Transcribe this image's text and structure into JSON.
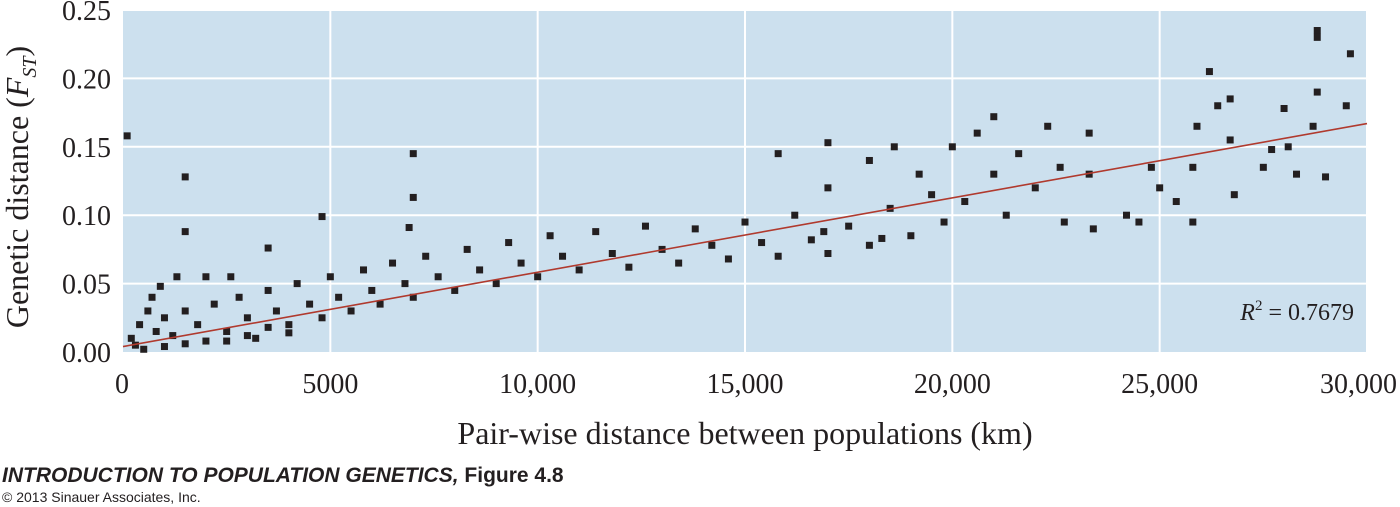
{
  "chart_data": {
    "type": "scatter",
    "title": "",
    "xlabel": "Pair-wise distance between populations (km)",
    "ylabel_main": "Genetic distance (",
    "ylabel_symbol": "F",
    "ylabel_subscript": "ST",
    "ylabel_close": ")",
    "xlim": [
      0,
      30000
    ],
    "ylim": [
      0,
      0.25
    ],
    "x_ticks": [
      0,
      5000,
      10000,
      15000,
      20000,
      25000,
      30000
    ],
    "x_tick_labels": [
      "0",
      "5000",
      "10,000",
      "15,000",
      "20,000",
      "25,000",
      "30,000"
    ],
    "y_ticks": [
      0,
      0.05,
      0.1,
      0.15,
      0.2,
      0.25
    ],
    "y_tick_labels": [
      "0.00",
      "0.05",
      "0.10",
      "0.15",
      "0.20",
      "0.25"
    ],
    "grid": true,
    "background_color": "#cce0ee",
    "grid_color": "#ffffff",
    "point_color": "#231f20",
    "regression": {
      "x": [
        0,
        30000
      ],
      "y": [
        0.004,
        0.167
      ],
      "color": "#b03a2e",
      "label_symbol": "R",
      "label_superscript": "2",
      "label_value": " = 0.7679"
    },
    "points": [
      [
        100,
        0.158
      ],
      [
        1500,
        0.128
      ],
      [
        1500,
        0.088
      ],
      [
        1300,
        0.055
      ],
      [
        2000,
        0.055
      ],
      [
        4800,
        0.099
      ],
      [
        7000,
        0.145
      ],
      [
        7000,
        0.113
      ],
      [
        6900,
        0.091
      ],
      [
        3500,
        0.076
      ],
      [
        200,
        0.01
      ],
      [
        400,
        0.02
      ],
      [
        600,
        0.03
      ],
      [
        300,
        0.005
      ],
      [
        800,
        0.015
      ],
      [
        1000,
        0.025
      ],
      [
        1200,
        0.012
      ],
      [
        1500,
        0.03
      ],
      [
        1800,
        0.02
      ],
      [
        2000,
        0.008
      ],
      [
        2200,
        0.035
      ],
      [
        2500,
        0.015
      ],
      [
        2800,
        0.04
      ],
      [
        3000,
        0.025
      ],
      [
        3200,
        0.01
      ],
      [
        3500,
        0.045
      ],
      [
        3700,
        0.03
      ],
      [
        4000,
        0.02
      ],
      [
        4200,
        0.05
      ],
      [
        4500,
        0.035
      ],
      [
        4800,
        0.025
      ],
      [
        5000,
        0.055
      ],
      [
        5200,
        0.04
      ],
      [
        5500,
        0.03
      ],
      [
        5800,
        0.06
      ],
      [
        6000,
        0.045
      ],
      [
        6200,
        0.035
      ],
      [
        6500,
        0.065
      ],
      [
        6800,
        0.05
      ],
      [
        7000,
        0.04
      ],
      [
        7300,
        0.07
      ],
      [
        7600,
        0.055
      ],
      [
        8000,
        0.045
      ],
      [
        8300,
        0.075
      ],
      [
        8600,
        0.06
      ],
      [
        9000,
        0.05
      ],
      [
        9300,
        0.08
      ],
      [
        9600,
        0.065
      ],
      [
        10000,
        0.055
      ],
      [
        10300,
        0.085
      ],
      [
        10600,
        0.07
      ],
      [
        11000,
        0.06
      ],
      [
        11400,
        0.088
      ],
      [
        11800,
        0.072
      ],
      [
        12200,
        0.062
      ],
      [
        12600,
        0.092
      ],
      [
        13000,
        0.075
      ],
      [
        13400,
        0.065
      ],
      [
        13800,
        0.09
      ],
      [
        14200,
        0.078
      ],
      [
        14600,
        0.068
      ],
      [
        15000,
        0.095
      ],
      [
        15400,
        0.08
      ],
      [
        15800,
        0.07
      ],
      [
        15800,
        0.145
      ],
      [
        16200,
        0.1
      ],
      [
        16600,
        0.082
      ],
      [
        17000,
        0.072
      ],
      [
        17000,
        0.153
      ],
      [
        17000,
        0.12
      ],
      [
        17500,
        0.092
      ],
      [
        18000,
        0.078
      ],
      [
        18000,
        0.14
      ],
      [
        18500,
        0.105
      ],
      [
        18600,
        0.15
      ],
      [
        19000,
        0.085
      ],
      [
        19200,
        0.13
      ],
      [
        19500,
        0.115
      ],
      [
        19800,
        0.095
      ],
      [
        20000,
        0.15
      ],
      [
        20300,
        0.11
      ],
      [
        20600,
        0.16
      ],
      [
        21000,
        0.13
      ],
      [
        21000,
        0.172
      ],
      [
        21300,
        0.1
      ],
      [
        21600,
        0.145
      ],
      [
        22000,
        0.12
      ],
      [
        22300,
        0.165
      ],
      [
        22600,
        0.135
      ],
      [
        22700,
        0.095
      ],
      [
        23300,
        0.16
      ],
      [
        23300,
        0.13
      ],
      [
        23400,
        0.09
      ],
      [
        24200,
        0.1
      ],
      [
        24500,
        0.095
      ],
      [
        24800,
        0.135
      ],
      [
        25000,
        0.12
      ],
      [
        25400,
        0.11
      ],
      [
        25800,
        0.095
      ],
      [
        25800,
        0.135
      ],
      [
        26200,
        0.205
      ],
      [
        26400,
        0.18
      ],
      [
        26700,
        0.185
      ],
      [
        26700,
        0.155
      ],
      [
        26800,
        0.115
      ],
      [
        27500,
        0.135
      ],
      [
        28100,
        0.15
      ],
      [
        28300,
        0.13
      ],
      [
        28700,
        0.165
      ],
      [
        28800,
        0.19
      ],
      [
        28800,
        0.235
      ],
      [
        28800,
        0.23
      ],
      [
        29000,
        0.128
      ],
      [
        29600,
        0.218
      ],
      [
        29500,
        0.18
      ],
      [
        25900,
        0.165
      ],
      [
        27700,
        0.148
      ],
      [
        28000,
        0.178
      ],
      [
        16900,
        0.088
      ],
      [
        18300,
        0.083
      ],
      [
        500,
        0.002
      ],
      [
        1000,
        0.004
      ],
      [
        1500,
        0.006
      ],
      [
        2500,
        0.008
      ],
      [
        3000,
        0.012
      ],
      [
        3500,
        0.018
      ],
      [
        4000,
        0.014
      ],
      [
        700,
        0.04
      ],
      [
        900,
        0.048
      ],
      [
        2600,
        0.055
      ]
    ]
  },
  "caption": {
    "book_title": "INTRODUCTION TO POPULATION GENETICS,",
    "figure_label": " Figure 4.8",
    "copyright": "© 2013 Sinauer Associates, Inc."
  }
}
